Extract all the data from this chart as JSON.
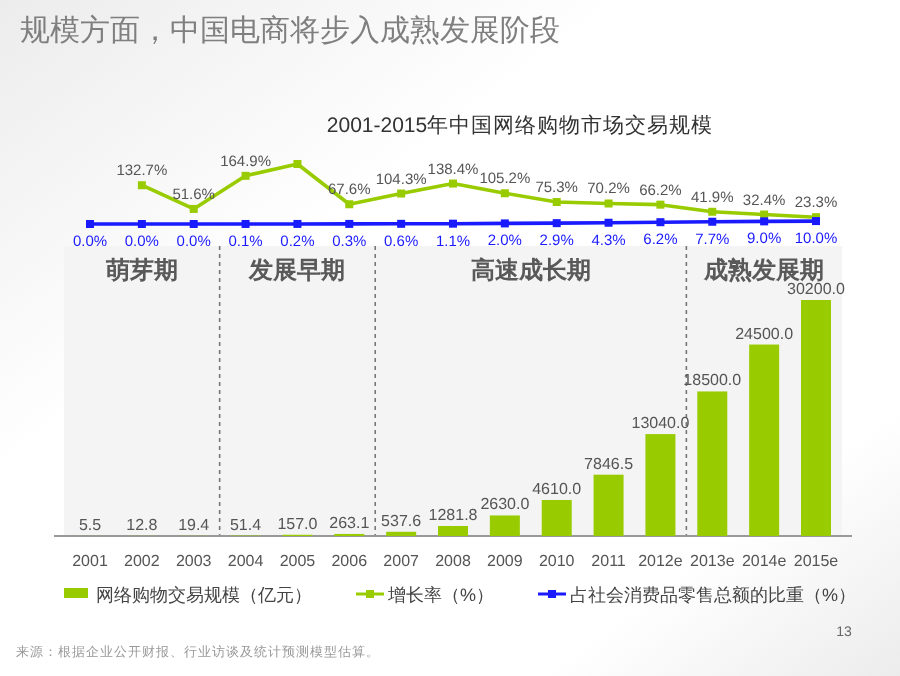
{
  "chart_data": [
    {
      "type": "line",
      "title": "规模方面，中国电商将步入成熟发展阶段",
      "subtitle": "2001-2015年中国网络购物市场交易规模",
      "categories": [
        "2001",
        "2002",
        "2003",
        "2004",
        "2005",
        "2006",
        "2007",
        "2008",
        "2009",
        "2010",
        "2011",
        "2012e",
        "2013e",
        "2014e",
        "2015e"
      ],
      "tick_labels": false,
      "legend": "bottom",
      "series": [
        {
          "name": "增长率（%）",
          "color": "#99cc00",
          "values": [
            null,
            132.7,
            51.6,
            164.9,
            205.4,
            67.6,
            104.3,
            138.4,
            105.2,
            75.3,
            70.2,
            66.2,
            41.9,
            32.4,
            23.3
          ],
          "value_labels": [
            null,
            "132.7%",
            "51.6%",
            "164.9%",
            null,
            "67.6%",
            "104.3%",
            "138.4%",
            "105.2%",
            "75.3%",
            "70.2%",
            "66.2%",
            "41.9%",
            "32.4%",
            "23.3%"
          ]
        },
        {
          "name": "占社会消费品零售总额的比重（%）",
          "color": "#1a1aff",
          "values": [
            0.0,
            0.0,
            0.0,
            0.1,
            0.2,
            0.3,
            0.6,
            1.1,
            2.0,
            2.9,
            4.3,
            6.2,
            7.7,
            9.0,
            10.0
          ],
          "value_labels": [
            "0.0%",
            "0.0%",
            "0.0%",
            "0.1%",
            "0.2%",
            "0.3%",
            "0.6%",
            "1.1%",
            "2.0%",
            "2.9%",
            "4.3%",
            "6.2%",
            "7.7%",
            "9.0%",
            "10.0%"
          ]
        }
      ],
      "marker": "square"
    },
    {
      "type": "bar",
      "categories": [
        "2001",
        "2002",
        "2003",
        "2004",
        "2005",
        "2006",
        "2007",
        "2008",
        "2009",
        "2010",
        "2011",
        "2012e",
        "2013e",
        "2014e",
        "2015e"
      ],
      "series": [
        {
          "name": "网络购物交易规模（亿元）",
          "color": "#99cc00",
          "values": [
            5.5,
            12.8,
            19.4,
            51.4,
            157.0,
            263.1,
            537.6,
            1281.8,
            2630.0,
            4610.0,
            7846.5,
            13040.0,
            18500.0,
            24500.0,
            30200.0
          ],
          "value_labels": [
            "5.5",
            "12.8",
            "19.4",
            "51.4",
            "157.0",
            "263.1",
            "537.6",
            "1281.8",
            "2630.0",
            "4610.0",
            "7846.5",
            "13040.0",
            "18500.0",
            "24500.0",
            "30200.0"
          ]
        }
      ],
      "bands": [
        {
          "axis": "x",
          "from": "2001",
          "to": "2003",
          "label": "萌芽期",
          "color": "#f4f4f4"
        },
        {
          "axis": "x",
          "from": "2004",
          "to": "2006",
          "label": "发展早期",
          "color": "#f4f4f4"
        },
        {
          "axis": "x",
          "from": "2007",
          "to": "2012e",
          "label": "高速成长期",
          "color": "#f4f4f4"
        },
        {
          "axis": "x",
          "from": "2013e",
          "to": "2015e",
          "label": "成熟发展期",
          "color": "#f4f4f4"
        }
      ],
      "legend": "bottom",
      "grid": false,
      "annotations": [
        "来源：根据企业公开财报、行业访谈及统计预测模型估算。",
        "13"
      ]
    }
  ]
}
